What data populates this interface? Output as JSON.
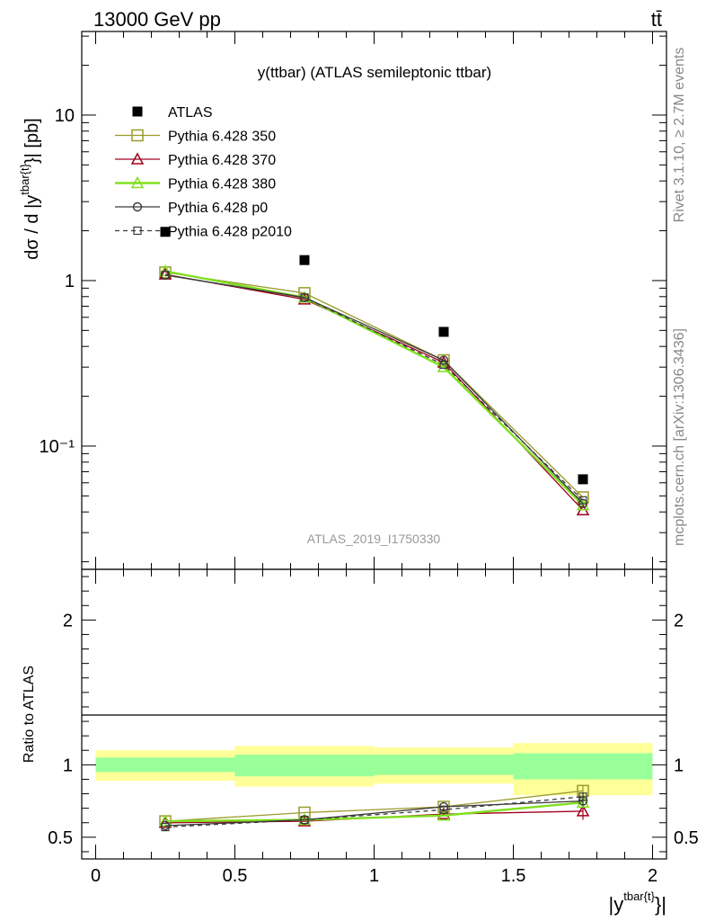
{
  "header": {
    "left": "13000 GeV pp",
    "right": "tt̄"
  },
  "side_labels": {
    "rivet": "Rivet 3.1.10, ≥ 2.7M events",
    "mcplots": "mcplots.cern.ch [arXiv:1306.3436]"
  },
  "chart_data": [
    {
      "type": "scatter",
      "panel": "main",
      "title": "y(ttbar) (ATLAS semileptonic ttbar)",
      "watermark": "ATLAS_2019_I1750330",
      "ylabel_main": "dσ / d |y",
      "ylabel_sup": "tbar{t}",
      "ylabel_tail": "}| [pb]",
      "yscale": "log",
      "xlim": [
        -0.05,
        2.05
      ],
      "ylim": [
        0.018,
        32
      ],
      "yticks_major": [
        0.1,
        1,
        10
      ],
      "ytick_labels": [
        "10⁻¹",
        "1",
        "10"
      ],
      "legend_placement": "top-left",
      "series": [
        {
          "name": "ATLAS",
          "color": "#000000",
          "marker": "filled-square",
          "line": "none",
          "x": [
            0.25,
            0.75,
            1.25,
            1.75
          ],
          "y": [
            1.97,
            1.33,
            0.49,
            0.063
          ]
        },
        {
          "name": "Pythia 6.428 350",
          "color": "#9a9a2a",
          "marker": "open-square",
          "line": "solid",
          "x": [
            0.25,
            0.75,
            1.25,
            1.75
          ],
          "y": [
            1.12,
            0.84,
            0.33,
            0.049
          ]
        },
        {
          "name": "Pythia 6.428 370",
          "color": "#a0001e",
          "marker": "open-triangle",
          "line": "solid",
          "x": [
            0.25,
            0.75,
            1.25,
            1.75
          ],
          "y": [
            1.09,
            0.77,
            0.32,
            0.041
          ]
        },
        {
          "name": "Pythia 6.428 380",
          "color": "#80e020",
          "marker": "open-triangle",
          "line": "solid-thick",
          "x": [
            0.25,
            0.75,
            1.25,
            1.75
          ],
          "y": [
            1.14,
            0.79,
            0.3,
            0.044
          ]
        },
        {
          "name": "Pythia 6.428 p0",
          "color": "#3a3a3a",
          "marker": "open-circle",
          "line": "solid",
          "x": [
            0.25,
            0.75,
            1.25,
            1.75
          ],
          "y": [
            1.08,
            0.79,
            0.33,
            0.045
          ]
        },
        {
          "name": "Pythia 6.428 p2010",
          "color": "#3a3a3a",
          "marker": "open-small-square",
          "line": "dashed",
          "x": [
            0.25,
            0.75,
            1.25,
            1.75
          ],
          "y": [
            1.08,
            0.79,
            0.31,
            0.047
          ]
        }
      ]
    },
    {
      "type": "scatter",
      "panel": "ratio",
      "ylabel": "Ratio to ATLAS",
      "xlabel": "|y",
      "xlabel_sup": "tbar{t}",
      "xlabel_tail": "}|",
      "xlim": [
        -0.05,
        2.05
      ],
      "ylim": [
        0.35,
        2.35
      ],
      "xticks": [
        0,
        0.5,
        1,
        1.5,
        2
      ],
      "xtick_labels": [
        "0",
        "0.5",
        "1",
        "1.5",
        "2"
      ],
      "yticks": [
        0.5,
        1,
        2
      ],
      "ytick_labels": [
        "0.5",
        "1",
        "2"
      ],
      "bands": [
        {
          "x0": 0.0,
          "x1": 0.5,
          "outer": [
            0.89,
            1.1
          ],
          "inner": [
            0.95,
            1.05
          ]
        },
        {
          "x0": 0.5,
          "x1": 1.0,
          "outer": [
            0.85,
            1.13
          ],
          "inner": [
            0.92,
            1.07
          ]
        },
        {
          "x0": 1.0,
          "x1": 1.5,
          "outer": [
            0.87,
            1.12
          ],
          "inner": [
            0.93,
            1.07
          ]
        },
        {
          "x0": 1.5,
          "x1": 2.0,
          "outer": [
            0.79,
            1.15
          ],
          "inner": [
            0.9,
            1.08
          ]
        }
      ],
      "band_colors": {
        "outer": "#ffff99",
        "inner": "#99ff99"
      },
      "series": [
        {
          "name": "Pythia 6.428 350",
          "x": [
            0.25,
            0.75,
            1.25,
            1.75
          ],
          "y": [
            0.61,
            0.67,
            0.71,
            0.82
          ],
          "err": [
            0,
            0,
            0,
            0.04
          ]
        },
        {
          "name": "Pythia 6.428 370",
          "x": [
            0.25,
            0.75,
            1.25,
            1.75
          ],
          "y": [
            0.6,
            0.61,
            0.66,
            0.68
          ],
          "err": [
            0,
            0,
            0,
            0.06
          ]
        },
        {
          "name": "Pythia 6.428 380",
          "x": [
            0.25,
            0.75,
            1.25,
            1.75
          ],
          "y": [
            0.61,
            0.62,
            0.65,
            0.74
          ],
          "err": [
            0,
            0,
            0,
            0.03
          ]
        },
        {
          "name": "Pythia 6.428 p0",
          "x": [
            0.25,
            0.75,
            1.25,
            1.75
          ],
          "y": [
            0.58,
            0.62,
            0.71,
            0.75
          ],
          "err": [
            0,
            0,
            0,
            0.03
          ]
        },
        {
          "name": "Pythia 6.428 p2010",
          "x": [
            0.25,
            0.75,
            1.25,
            1.75
          ],
          "y": [
            0.57,
            0.62,
            0.69,
            0.78
          ],
          "err": [
            0,
            0,
            0,
            0.03
          ]
        }
      ]
    }
  ]
}
